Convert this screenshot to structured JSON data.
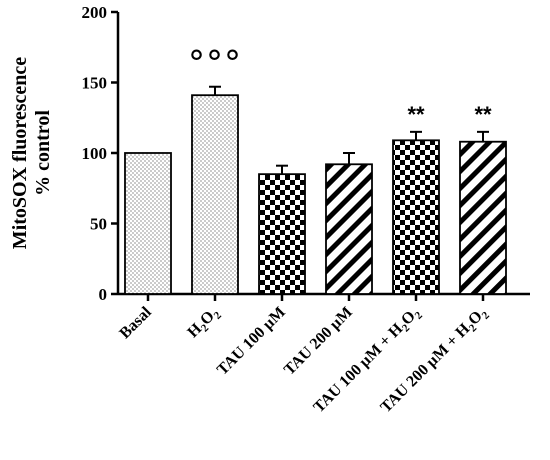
{
  "chart_data": {
    "type": "bar",
    "categories": [
      "Basal",
      "H2O2",
      "TAU 100 µM",
      "TAU 200 µM",
      "TAU 100 µM + H2O2",
      "TAU 200 µM + H2O2"
    ],
    "category_labels": [
      {
        "text": "Basal",
        "sub": ""
      },
      {
        "text": "H",
        "sub": "2",
        "text2": "O",
        "sub2": "2"
      },
      {
        "text": "TAU 100 µM",
        "sub": ""
      },
      {
        "text": "TAU 200 µM",
        "sub": ""
      },
      {
        "text": "TAU 100 µM + H",
        "sub": "2",
        "text2": "O",
        "sub2": "2"
      },
      {
        "text": "TAU 200 µM + H",
        "sub": "2",
        "text2": "O",
        "sub2": "2"
      }
    ],
    "values": [
      100,
      141,
      85,
      92,
      109,
      108
    ],
    "errors": [
      0,
      6,
      6,
      8,
      6,
      7
    ],
    "patterns": [
      "dots",
      "dots",
      "checker",
      "diagonal",
      "checker",
      "diagonal"
    ],
    "annotations": [
      "",
      "°°°",
      "",
      "",
      "**",
      "**"
    ],
    "ylabel_line1": "MitoSOX fluorescence",
    "ylabel_line2": "% control",
    "ylim": [
      0,
      200
    ],
    "yticks": [
      "0",
      "50",
      "100",
      "150",
      "200"
    ],
    "ytick_values": [
      0,
      50,
      100,
      150,
      200
    ],
    "grid": false,
    "colors": {
      "bar_fill": "#ffffff",
      "ink": "#000000"
    }
  }
}
